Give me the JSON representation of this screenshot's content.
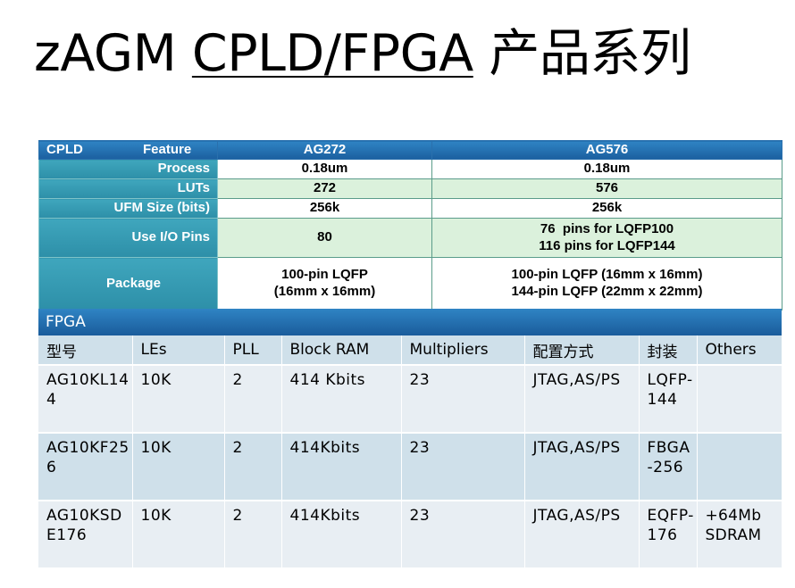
{
  "title": {
    "prefix": "zAGM ",
    "underlined": "CPLD/FPGA",
    "suffix": " 产品系列"
  },
  "cpld": {
    "header": {
      "cpld": "CPLD",
      "feature": "Feature",
      "col1": "AG272",
      "col2": "AG576"
    },
    "rows": [
      {
        "label": "Process",
        "v1": "0.18um",
        "v2": "0.18um"
      },
      {
        "label": "LUTs",
        "v1": "272",
        "v2": "576"
      },
      {
        "label": "UFM Size (bits)",
        "v1": "256k",
        "v2": "256k"
      },
      {
        "label": "Use I/O Pins",
        "v1": "80",
        "v2a": "76  pins for LQFP100",
        "v2b": "116 pins for LQFP144"
      },
      {
        "label": "Package",
        "v1a": "100-pin LQFP",
        "v1b": "(16mm x 16mm)",
        "v2a": "100-pin LQFP (16mm x 16mm)",
        "v2b": "144-pin LQFP (22mm x 22mm)"
      }
    ]
  },
  "fpga": {
    "section": "FPGA",
    "columns": [
      "型号",
      "LEs",
      "PLL",
      "Block RAM",
      "Multipliers",
      "配置方式",
      "封装",
      "Others"
    ],
    "rows": [
      [
        "AG10KL144",
        "10K",
        "2",
        "414 Kbits",
        "23",
        "JTAG,AS/PS",
        "LQFP-144",
        ""
      ],
      [
        "AG10KF256",
        "10K",
        "2",
        "414Kbits",
        "23",
        "JTAG,AS/PS",
        "FBGA-256",
        ""
      ],
      [
        "AG10KSDE176",
        "10K",
        "2",
        "414Kbits",
        "23",
        "JTAG,AS/PS",
        "EQFP-176",
        "+64Mb SDRAM"
      ]
    ]
  }
}
